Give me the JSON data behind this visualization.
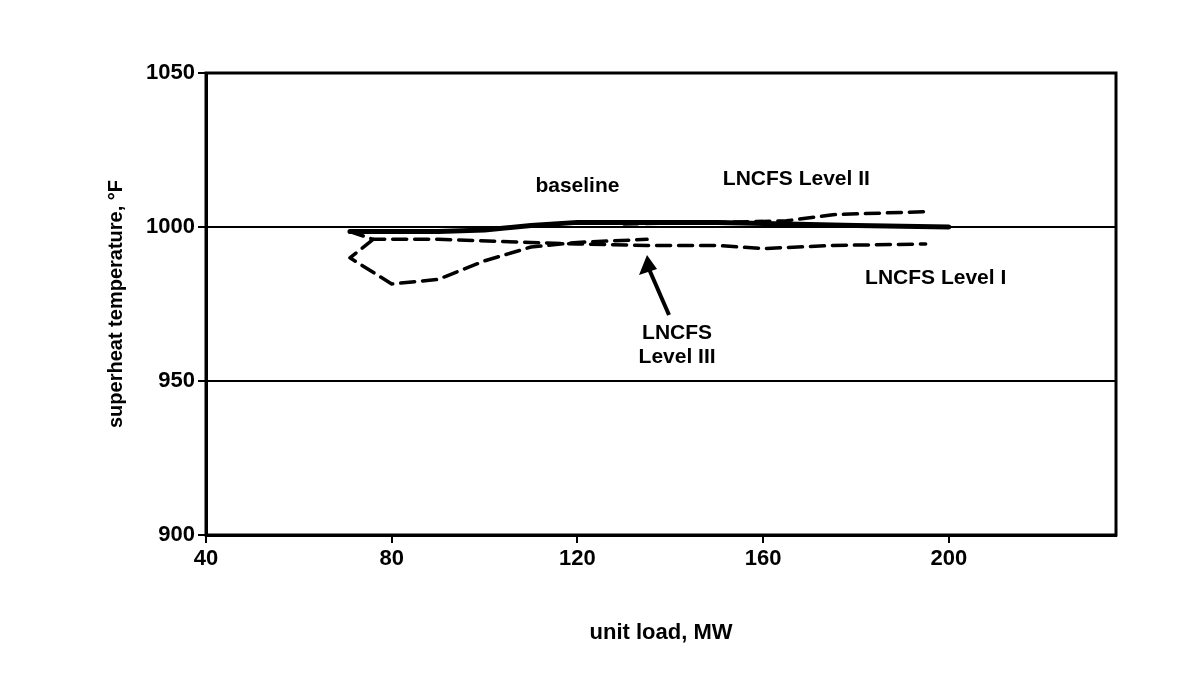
{
  "chart_data": {
    "type": "line",
    "xlabel": "unit load, MW",
    "ylabel": "superheat temperature, °F",
    "xlim": [
      40,
      236
    ],
    "xticks": [
      40,
      80,
      120,
      160,
      200
    ],
    "ylim": [
      900,
      1050
    ],
    "yticks": [
      900,
      950,
      1000,
      1050
    ],
    "grid": "y",
    "legend": false,
    "marker": "none",
    "series": [
      {
        "name": "baseline",
        "color": "#000000",
        "line_style": "solid",
        "x": [
          71,
          80,
          90,
          100,
          110,
          120,
          135,
          150,
          165,
          180,
          200
        ],
        "values": [
          998.5,
          998.5,
          998.5,
          999,
          1000.5,
          1001.5,
          1001.5,
          1001.5,
          1001,
          1000.5,
          1000
        ]
      },
      {
        "name": "LNCFS Level I",
        "color": "#000000",
        "line_style": "dashed",
        "x": [
          71,
          76,
          90,
          110,
          120,
          135,
          150,
          160,
          175,
          195
        ],
        "values": [
          998.5,
          996,
          996,
          995,
          994.5,
          994,
          994,
          993,
          994,
          994.5
        ]
      },
      {
        "name": "LNCFS Level II",
        "color": "#000000",
        "line_style": "dashed",
        "x": [
          130,
          150,
          165,
          175,
          195
        ],
        "values": [
          1001,
          1001.5,
          1002,
          1004,
          1005
        ]
      },
      {
        "color": "#000000",
        "line_style": "dashed",
        "x": [
          76,
          71,
          80,
          90,
          100,
          110,
          120,
          135
        ],
        "values": [
          996,
          990,
          981.5,
          983,
          989,
          993.5,
          995,
          996
        ]
      }
    ],
    "annotations": [
      "LNCFS\nLevel III"
    ]
  }
}
